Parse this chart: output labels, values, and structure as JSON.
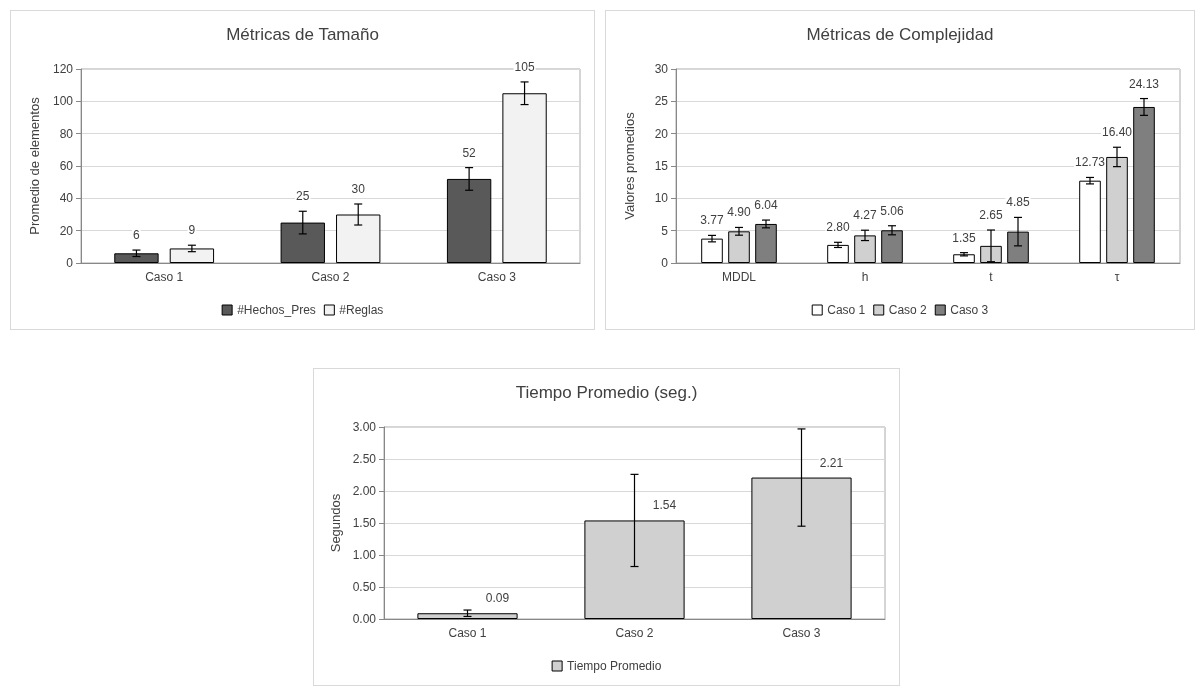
{
  "chart_data": [
    {
      "type": "bar",
      "title": "Métricas de Tamaño",
      "ylabel": "Promedio de elementos",
      "categories": [
        "Caso 1",
        "Caso 2",
        "Caso 3"
      ],
      "series": [
        {
          "name": "#Hechos_Pres",
          "color": "#595959",
          "values": [
            6,
            25,
            52
          ],
          "errors": [
            2,
            7,
            7
          ]
        },
        {
          "name": "#Reglas",
          "color": "#f2f2f2",
          "values": [
            9,
            30,
            105
          ],
          "errors": [
            2,
            6.5,
            7
          ]
        }
      ],
      "ylim": [
        0,
        120
      ],
      "yticks": [
        0,
        20,
        40,
        60,
        80,
        100,
        120
      ],
      "grid": "y",
      "legend": "bottom",
      "data_labels": true
    },
    {
      "type": "bar",
      "title": "Métricas de Complejidad",
      "ylabel": "Valores promedios",
      "categories": [
        "MDDL",
        "h",
        "t",
        "τ"
      ],
      "series": [
        {
          "name": "Caso 1",
          "color": "#ffffff",
          "values": [
            3.77,
            2.8,
            1.35,
            12.73
          ],
          "errors": [
            0.5,
            0.4,
            0.25,
            0.5
          ],
          "value_labels": [
            "3.77",
            "2.80",
            "1.35",
            "12.73"
          ]
        },
        {
          "name": "Caso 2",
          "color": "#d0d0d0",
          "values": [
            4.9,
            4.27,
            2.65,
            16.4
          ],
          "errors": [
            0.6,
            0.8,
            2.45,
            1.5
          ],
          "value_labels": [
            "4.90",
            "4.27",
            "2.65",
            "16.40"
          ]
        },
        {
          "name": "Caso 3",
          "color": "#7f7f7f",
          "values": [
            6.04,
            5.06,
            4.85,
            24.13
          ],
          "errors": [
            0.6,
            0.7,
            2.2,
            1.3
          ],
          "value_labels": [
            "6.04",
            "5.06",
            "4.85",
            "24.13"
          ]
        }
      ],
      "ylim": [
        0,
        30
      ],
      "yticks": [
        0,
        5,
        10,
        15,
        20,
        25,
        30
      ],
      "grid": "y",
      "legend": "bottom"
    },
    {
      "type": "bar",
      "title": "Tiempo Promedio (seg.)",
      "ylabel": "Segundos",
      "categories": [
        "Caso 1",
        "Caso 2",
        "Caso 3"
      ],
      "series": [
        {
          "name": "Tiempo Promedio",
          "color": "#d0d0d0",
          "values": [
            0.09,
            1.54,
            2.21
          ],
          "errors": [
            0.05,
            0.72,
            0.76
          ],
          "value_labels": [
            "0.09",
            "1.54",
            "2.21"
          ]
        }
      ],
      "ylim": [
        0,
        3
      ],
      "yticks": [
        {
          "value": 0,
          "label": "0.00"
        },
        {
          "value": 0.5,
          "label": "0.50"
        },
        {
          "value": 1,
          "label": "1.00"
        },
        {
          "value": 1.5,
          "label": "1.50"
        },
        {
          "value": 2,
          "label": "2.00"
        },
        {
          "value": 2.5,
          "label": "2.50"
        },
        {
          "value": 3,
          "label": "3.00"
        }
      ],
      "grid": "y",
      "legend": "bottom"
    }
  ]
}
